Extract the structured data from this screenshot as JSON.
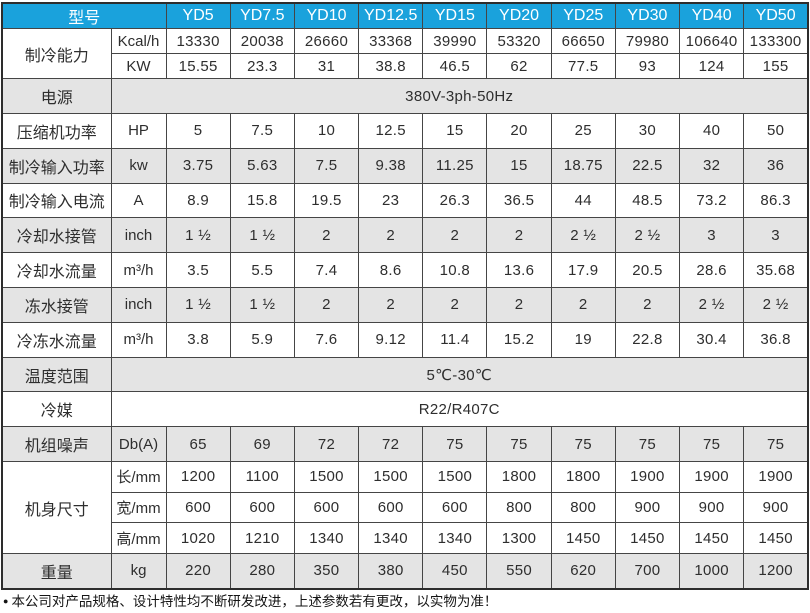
{
  "colors": {
    "header_bg": "#1aa2dc",
    "header_text": "#ffffff",
    "row_shade": "#e4e4e4",
    "border": "#454545",
    "text": "#2e2e2e"
  },
  "table": {
    "header": {
      "model_label": "型号",
      "models": [
        "YD5",
        "YD7.5",
        "YD10",
        "YD12.5",
        "YD15",
        "YD20",
        "YD25",
        "YD30",
        "YD40",
        "YD50"
      ]
    },
    "rows": [
      {
        "label": "制冷能力",
        "subrows": [
          {
            "unit": "Kcal/h",
            "shaded": false,
            "values": [
              "13330",
              "20038",
              "26660",
              "33368",
              "39990",
              "53320",
              "66650",
              "79980",
              "106640",
              "133300"
            ]
          },
          {
            "unit": "KW",
            "shaded": false,
            "values": [
              "15.55",
              "23.3",
              "31",
              "38.8",
              "46.5",
              "62",
              "77.5",
              "93",
              "124",
              "155"
            ]
          }
        ]
      },
      {
        "label": "电源",
        "merged": "380V-3ph-50Hz",
        "shaded": true
      },
      {
        "label": "压缩机功率",
        "unit": "HP",
        "shaded": false,
        "values": [
          "5",
          "7.5",
          "10",
          "12.5",
          "15",
          "20",
          "25",
          "30",
          "40",
          "50"
        ]
      },
      {
        "label": "制冷输入功率",
        "unit": "kw",
        "shaded": true,
        "values": [
          "3.75",
          "5.63",
          "7.5",
          "9.38",
          "11.25",
          "15",
          "18.75",
          "22.5",
          "32",
          "36"
        ]
      },
      {
        "label": "制冷输入电流",
        "unit": "A",
        "shaded": false,
        "values": [
          "8.9",
          "15.8",
          "19.5",
          "23",
          "26.3",
          "36.5",
          "44",
          "48.5",
          "73.2",
          "86.3"
        ]
      },
      {
        "label": "冷却水接管",
        "unit": "inch",
        "shaded": true,
        "values": [
          "1 ½",
          "1 ½",
          "2",
          "2",
          "2",
          "2",
          "2 ½",
          "2 ½",
          "3",
          "3"
        ]
      },
      {
        "label": "冷却水流量",
        "unit": "m³/h",
        "shaded": false,
        "values": [
          "3.5",
          "5.5",
          "7.4",
          "8.6",
          "10.8",
          "13.6",
          "17.9",
          "20.5",
          "28.6",
          "35.68"
        ]
      },
      {
        "label": "冻水接管",
        "unit": "inch",
        "shaded": true,
        "values": [
          "1 ½",
          "1 ½",
          "2",
          "2",
          "2",
          "2",
          "2",
          "2",
          "2 ½",
          "2 ½"
        ]
      },
      {
        "label": "冷冻水流量",
        "unit": "m³/h",
        "shaded": false,
        "values": [
          "3.8",
          "5.9",
          "7.6",
          "9.12",
          "11.4",
          "15.2",
          "19",
          "22.8",
          "30.4",
          "36.8"
        ]
      },
      {
        "label": "温度范围",
        "merged": "5℃-30℃",
        "shaded": true
      },
      {
        "label": "冷媒",
        "merged": "R22/R407C",
        "shaded": false
      },
      {
        "label": "机组噪声",
        "unit": "Db(A)",
        "shaded": true,
        "values": [
          "65",
          "69",
          "72",
          "72",
          "75",
          "75",
          "75",
          "75",
          "75",
          "75"
        ]
      },
      {
        "label": "机身尺寸",
        "subrows": [
          {
            "unit": "长/mm",
            "shaded": false,
            "values": [
              "1200",
              "1100",
              "1500",
              "1500",
              "1500",
              "1800",
              "1800",
              "1900",
              "1900",
              "1900"
            ]
          },
          {
            "unit": "宽/mm",
            "shaded": false,
            "values": [
              "600",
              "600",
              "600",
              "600",
              "600",
              "800",
              "800",
              "900",
              "900",
              "900"
            ]
          },
          {
            "unit": "高/mm",
            "shaded": false,
            "values": [
              "1020",
              "1210",
              "1340",
              "1340",
              "1340",
              "1300",
              "1450",
              "1450",
              "1450",
              "1450"
            ]
          }
        ]
      },
      {
        "label": "重量",
        "unit": "kg",
        "shaded": true,
        "values": [
          "220",
          "280",
          "350",
          "380",
          "450",
          "550",
          "620",
          "700",
          "1000",
          "1200"
        ]
      }
    ]
  },
  "footnote": {
    "bullet": "●",
    "text": "本公司对产品规格、设计特性均不断研发改进，上述参数若有更改，以实物为准！"
  }
}
